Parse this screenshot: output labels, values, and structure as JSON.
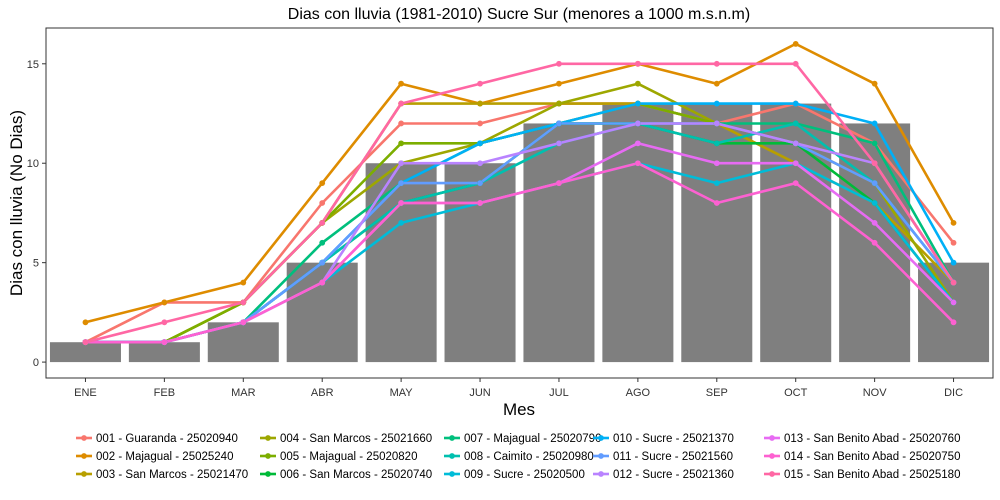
{
  "chart_data": {
    "type": "bar+line",
    "title": "Dias con lluvia (1981-2010) Sucre Sur (menores a 1000 m.s.n.m)",
    "xlabel": "Mes",
    "ylabel": "Dias con lluvia (No Dias)",
    "categories": [
      "ENE",
      "FEB",
      "MAR",
      "ABR",
      "MAY",
      "JUN",
      "JUL",
      "AGO",
      "SEP",
      "OCT",
      "NOV",
      "DIC"
    ],
    "yticks": [
      0,
      5,
      10,
      15
    ],
    "ylim": [
      -0.8,
      16.8
    ],
    "grid": false,
    "legend_position": "bottom",
    "bars": {
      "color": "#7f7f7f",
      "values": [
        1,
        1,
        2,
        5,
        10,
        10,
        12,
        13,
        13,
        13,
        12,
        5
      ]
    },
    "series": [
      {
        "name": "001 - Guaranda - 25020940",
        "color": "#F8766D",
        "values": [
          1,
          3,
          3,
          8,
          12,
          12,
          13,
          13,
          12,
          13,
          11,
          6
        ]
      },
      {
        "name": "002 - Majagual - 25025240",
        "color": "#DE8C00",
        "values": [
          2,
          3,
          4,
          9,
          14,
          13,
          14,
          15,
          14,
          16,
          14,
          7
        ]
      },
      {
        "name": "003 - San Marcos - 25021470",
        "color": "#B79F00",
        "values": [
          1,
          1,
          3,
          7,
          13,
          13,
          13,
          13,
          12,
          10,
          8,
          4
        ]
      },
      {
        "name": "004 - San Marcos - 25021660",
        "color": "#9DA700",
        "values": [
          1,
          1,
          3,
          7,
          10,
          11,
          13,
          14,
          12,
          11,
          9,
          3
        ]
      },
      {
        "name": "005 - Majagual - 25020820",
        "color": "#7CAE00",
        "values": [
          1,
          1,
          3,
          7,
          11,
          11,
          12,
          13,
          12,
          11,
          10,
          4
        ]
      },
      {
        "name": "006 - San Marcos - 25020740",
        "color": "#00BA38",
        "values": [
          1,
          1,
          2,
          5,
          8,
          9,
          12,
          12,
          11,
          11,
          8,
          3
        ]
      },
      {
        "name": "007 - Majagual - 25020790",
        "color": "#00BF7D",
        "values": [
          1,
          1,
          2,
          6,
          9,
          11,
          12,
          12,
          12,
          12,
          11,
          4
        ]
      },
      {
        "name": "008 - Caimito - 25020980",
        "color": "#00C0AF",
        "values": [
          1,
          1,
          2,
          5,
          8,
          9,
          11,
          12,
          11,
          12,
          9,
          4
        ]
      },
      {
        "name": "009 - Sucre - 25020500",
        "color": "#00BCD8",
        "values": [
          1,
          1,
          2,
          4,
          7,
          8,
          9,
          10,
          9,
          10,
          8,
          3
        ]
      },
      {
        "name": "010 - Sucre - 25021370",
        "color": "#00B0F6",
        "values": [
          1,
          1,
          2,
          5,
          9,
          11,
          12,
          13,
          13,
          13,
          12,
          5
        ]
      },
      {
        "name": "011 - Sucre - 25021560",
        "color": "#619CFF",
        "values": [
          1,
          1,
          2,
          5,
          9,
          9,
          12,
          12,
          12,
          11,
          9,
          4
        ]
      },
      {
        "name": "012 - Sucre - 25021360",
        "color": "#B983FF",
        "values": [
          1,
          1,
          2,
          4,
          10,
          10,
          11,
          12,
          12,
          11,
          10,
          4
        ]
      },
      {
        "name": "013 - San Benito Abad - 25020760",
        "color": "#E76BF3",
        "values": [
          1,
          1,
          2,
          4,
          8,
          8,
          9,
          11,
          10,
          10,
          7,
          3
        ]
      },
      {
        "name": "014 - San Benito Abad - 25020750",
        "color": "#FD61D1",
        "values": [
          1,
          1,
          2,
          4,
          8,
          8,
          9,
          10,
          8,
          9,
          6,
          2
        ]
      },
      {
        "name": "015 - San Benito Abad - 25025180",
        "color": "#FF67A4",
        "values": [
          1,
          2,
          3,
          7,
          13,
          14,
          15,
          15,
          15,
          15,
          10,
          4
        ]
      }
    ]
  }
}
